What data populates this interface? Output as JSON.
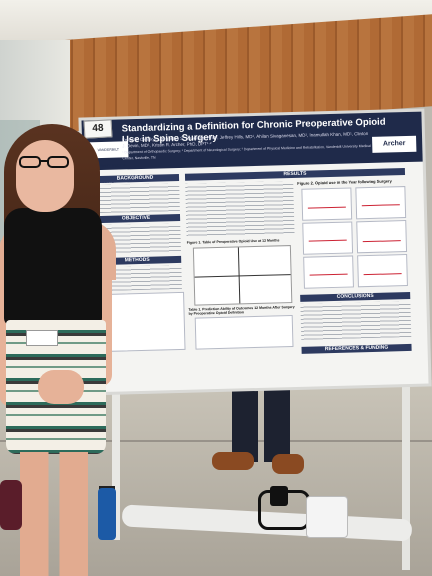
{
  "poster": {
    "number": "48",
    "title": "Standardizing a Definition for Chronic Preoperative Opioid Use in Spine Surgery",
    "authors": "Emily R. Oleisky¹, Jacquelyn S. Pennings, PhD², Jeffrey Hills, MD¹, Ahilan Sivaganesan, MD¹, Inamullah Khan, MD¹, Clinton J. Devin, MD¹, Kristin R. Archer, PhD, DPT¹·²",
    "affiliations": "¹ Department of Orthopaedic Surgery; ² Department of Neurological Surgery; ³ Department of Physical Medicine and Rehabilitation, Vanderbilt University Medical Center, Nashville, TN",
    "logo_left": "VANDERBILT UNIVERSITY MEDICAL CENTER",
    "logo_right": "Archer",
    "sections": {
      "background": "BACKGROUND",
      "objective": "OBJECTIVE",
      "methods": "METHODS",
      "results": "RESULTS",
      "conclusions": "CONCLUSIONS",
      "references": "REFERENCES & FUNDING"
    },
    "figure1_caption": "Figure 1. Table of Preoperative Opioid Use at 12 Months",
    "figure2_caption": "Figure 2. Opioid use in the Year following Surgery",
    "table_caption": "Table 1. Prediction Ability of Outcomes 12 Months After Surgery by Preoperative Opioid Definition"
  },
  "colors": {
    "poster_header": "#1f2a4a",
    "section_header": "#2d3a60"
  }
}
